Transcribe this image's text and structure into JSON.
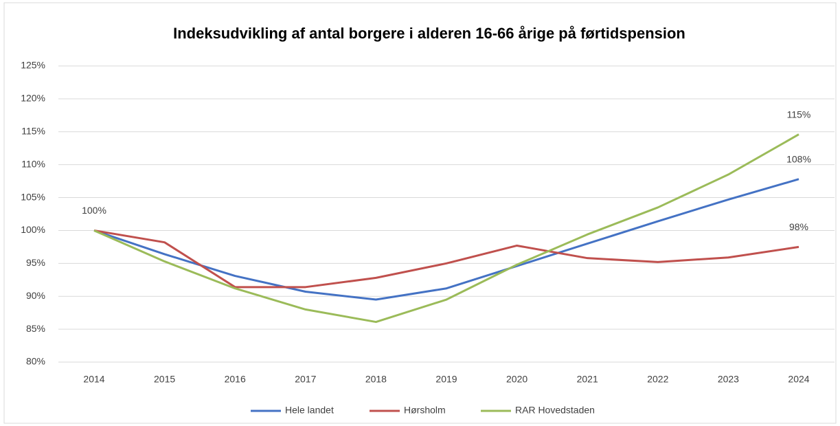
{
  "chart_data": {
    "type": "line",
    "title": "Indeksudvikling af antal borgere i alderen 16-66 årige på førtidspension",
    "categories": [
      "2014",
      "2015",
      "2016",
      "2017",
      "2018",
      "2019",
      "2020",
      "2021",
      "2022",
      "2023",
      "2024"
    ],
    "series": [
      {
        "name": "Hele landet",
        "color": "#4472c4",
        "values": [
          100,
          96.4,
          93.1,
          90.7,
          89.5,
          91.2,
          94.6,
          98.0,
          101.4,
          104.7,
          107.8
        ],
        "value_labels": [
          "100%",
          null,
          null,
          null,
          null,
          null,
          null,
          null,
          null,
          null,
          "108%"
        ]
      },
      {
        "name": "Hørsholm",
        "color": "#c0504d",
        "values": [
          100,
          98.2,
          91.4,
          91.4,
          92.8,
          95.0,
          97.7,
          95.8,
          95.2,
          95.9,
          97.5
        ],
        "value_labels": [
          null,
          null,
          null,
          null,
          null,
          null,
          null,
          null,
          null,
          null,
          "98%"
        ]
      },
      {
        "name": "RAR Hovedstaden",
        "color": "#9bbb59",
        "values": [
          100,
          95.3,
          91.2,
          88.0,
          86.1,
          89.5,
          94.8,
          99.4,
          103.5,
          108.5,
          114.6
        ],
        "value_labels": [
          null,
          null,
          null,
          null,
          null,
          null,
          null,
          null,
          null,
          null,
          "115%"
        ]
      }
    ],
    "ylim": [
      80,
      125
    ],
    "yticks": [
      {
        "value": 80,
        "label": "80%"
      },
      {
        "value": 85,
        "label": "85%"
      },
      {
        "value": 90,
        "label": "90%"
      },
      {
        "value": 95,
        "label": "95%"
      },
      {
        "value": 100,
        "label": "100%"
      },
      {
        "value": 105,
        "label": "105%"
      },
      {
        "value": 110,
        "label": "110%"
      },
      {
        "value": 115,
        "label": "115%"
      },
      {
        "value": 120,
        "label": "120%"
      },
      {
        "value": 125,
        "label": "125%"
      }
    ],
    "grid": true,
    "legend": "bottom"
  }
}
